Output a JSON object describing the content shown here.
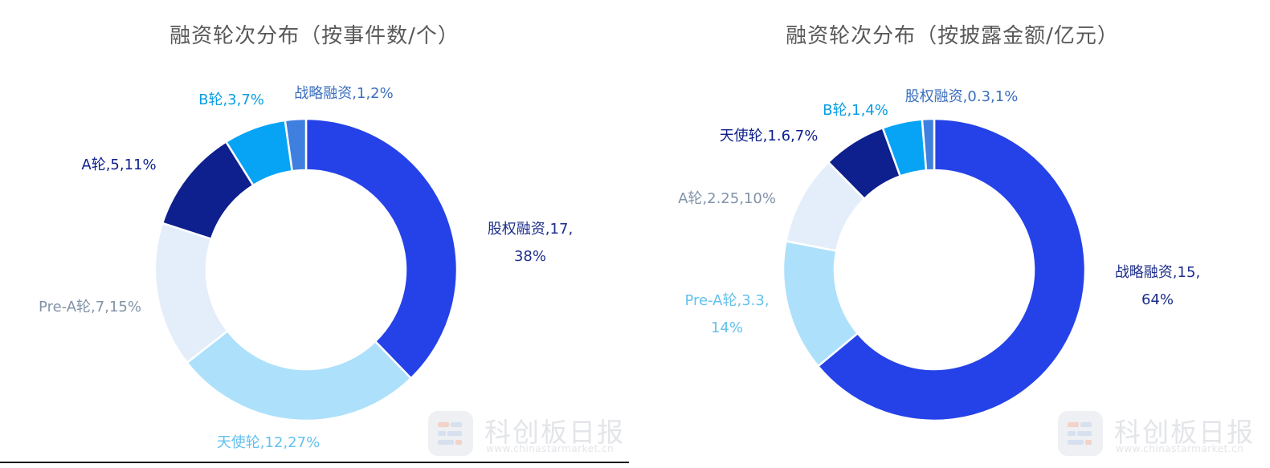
{
  "chart_data": [
    {
      "type": "pie",
      "donut": true,
      "title": "融资轮次分布（按事件数/个）",
      "legend": "none",
      "start": "12 o'clock",
      "direction": "clockwise",
      "series": [
        {
          "name": "股权融资",
          "value": 17,
          "percent": "38%",
          "label": [
            "股权融资,17,",
            "38%"
          ],
          "color": "#2542E8",
          "label_color": "#1E2E8A"
        },
        {
          "name": "天使轮",
          "value": 12,
          "percent": "27%",
          "label": [
            "天使轮,12,27%"
          ],
          "color": "#ADE0FB",
          "label_color": "#64C1EE"
        },
        {
          "name": "Pre-A轮",
          "value": 7,
          "percent": "15%",
          "label": [
            "Pre-A轮,7,15%"
          ],
          "color": "#E4EEFA",
          "label_color": "#8193A8"
        },
        {
          "name": "A轮",
          "value": 5,
          "percent": "11%",
          "label": [
            "A轮,5,11%"
          ],
          "color": "#0E1F8E",
          "label_color": "#0E1F8E"
        },
        {
          "name": "B轮",
          "value": 3,
          "percent": "7%",
          "label": [
            "B轮,3,7%"
          ],
          "color": "#07A4F6",
          "label_color": "#079DE5"
        },
        {
          "name": "战略融资",
          "value": 1,
          "percent": "2%",
          "label": [
            "战略融资,1,2%"
          ],
          "color": "#3F7FDF",
          "label_color": "#3A6FBE"
        }
      ]
    },
    {
      "type": "pie",
      "donut": true,
      "title": "融资轮次分布（按披露金额/亿元）",
      "legend": "none",
      "start": "12 o'clock",
      "direction": "clockwise",
      "series": [
        {
          "name": "战略融资",
          "value": 15,
          "percent": "64%",
          "label": [
            "战略融资,15,",
            "64%"
          ],
          "color": "#2542E8",
          "label_color": "#1E2E8A"
        },
        {
          "name": "Pre-A轮",
          "value": 3.3,
          "percent": "14%",
          "label": [
            "Pre-A轮,3.3,",
            "14%"
          ],
          "color": "#ADE0FB",
          "label_color": "#64C1EE"
        },
        {
          "name": "A轮",
          "value": 2.25,
          "percent": "10%",
          "label": [
            "A轮,2.25,10%"
          ],
          "color": "#E4EEFA",
          "label_color": "#8193A8"
        },
        {
          "name": "天使轮",
          "value": 1.6,
          "percent": "7%",
          "label": [
            "天使轮,1.6,7%"
          ],
          "color": "#0E1F8E",
          "label_color": "#0E1F8E"
        },
        {
          "name": "B轮",
          "value": 1,
          "percent": "4%",
          "label": [
            "B轮,1,4%"
          ],
          "color": "#07A4F6",
          "label_color": "#079DE5"
        },
        {
          "name": "股权融资",
          "value": 0.3,
          "percent": "1%",
          "label": [
            "股权融资,0.3,1%"
          ],
          "color": "#3F7FDF",
          "label_color": "#3A6FBE"
        }
      ]
    }
  ],
  "watermark": {
    "name": "科创板日报",
    "url": "www.chinastarmarket.cn"
  }
}
